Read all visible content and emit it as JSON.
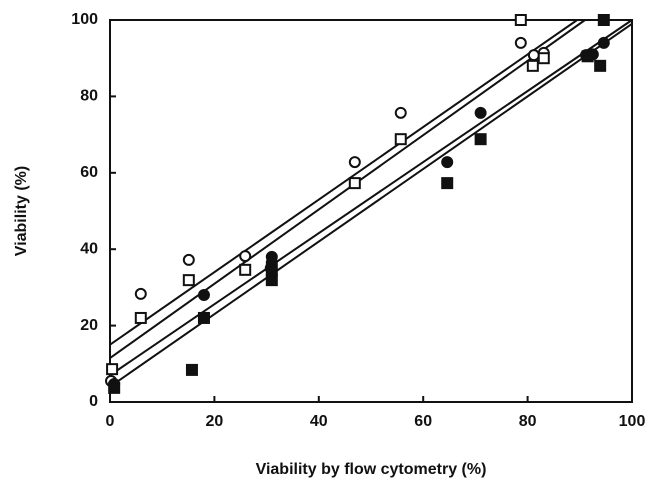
{
  "chart_data": {
    "type": "scatter",
    "xlabel": "Viability by flow cytometry (%)",
    "ylabel": "Viability (%)",
    "xlim": [
      0,
      100
    ],
    "ylim": [
      0,
      100
    ],
    "xticks": [
      0,
      20,
      40,
      60,
      80,
      100
    ],
    "yticks": [
      0,
      20,
      40,
      60,
      80,
      100
    ],
    "series": [
      {
        "marker": "circle",
        "filled": false,
        "color": "#111111",
        "x": [
          0.2,
          5.9,
          15.1,
          25.9,
          46.9,
          55.7,
          78.7,
          81.2,
          83.1
        ],
        "values": [
          5.5,
          28.3,
          37.2,
          38.2,
          62.8,
          75.7,
          94,
          90.8,
          91.4
        ],
        "fit": {
          "x": [
            0,
            89.5
          ],
          "y": [
            15,
            100
          ]
        }
      },
      {
        "marker": "square",
        "filled": false,
        "color": "#111111",
        "x": [
          0.4,
          5.9,
          15.1,
          25.9,
          46.9,
          55.7,
          78.7,
          81,
          83.1
        ],
        "values": [
          8.6,
          22,
          31.9,
          34.6,
          57.3,
          68.8,
          100,
          88,
          90
        ],
        "fit": {
          "x": [
            0,
            91
          ],
          "y": [
            11.5,
            100
          ]
        }
      },
      {
        "marker": "circle",
        "filled": true,
        "color": "#111111",
        "x": [
          0.8,
          18,
          31,
          31,
          30.8,
          64.6,
          71,
          91.2,
          92.5,
          94.6
        ],
        "values": [
          4.7,
          28,
          38,
          36.5,
          35,
          62.8,
          75.7,
          90.8,
          91,
          94
        ],
        "fit": {
          "x": [
            0,
            100
          ],
          "y": [
            7,
            100
          ]
        }
      },
      {
        "marker": "square",
        "filled": true,
        "color": "#111111",
        "x": [
          0.8,
          15.7,
          18,
          31,
          31,
          64.6,
          71,
          91.5,
          93.9,
          94.6
        ],
        "values": [
          3.7,
          8.4,
          22,
          31.9,
          34.5,
          57.3,
          68.8,
          90.5,
          88,
          100
        ],
        "fit": {
          "x": [
            0,
            100
          ],
          "y": [
            4,
            99
          ]
        }
      }
    ]
  }
}
